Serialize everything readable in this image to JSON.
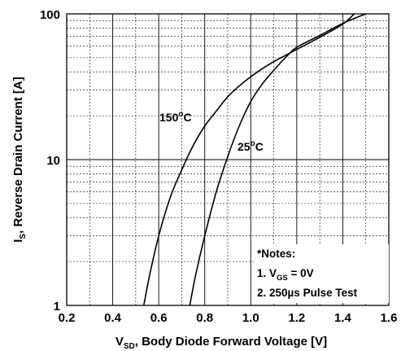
{
  "chart_data": {
    "type": "line",
    "xscale": "linear",
    "yscale": "log",
    "xlim": [
      0.2,
      1.6
    ],
    "ylim": [
      1,
      100
    ],
    "grid": true,
    "x_ticks": [
      "0.2",
      "0.4",
      "0.6",
      "0.8",
      "1.0",
      "1.2",
      "1.4",
      "1.6"
    ],
    "y_ticks": [
      "1",
      "10",
      "100"
    ],
    "xlabel": {
      "main": "V",
      "sub": "SD",
      "rest": ", Body Diode Forward Voltage [V]"
    },
    "ylabel": {
      "main": "I",
      "sub": "S",
      "rest": ", Reverse Drain Current [A]"
    },
    "series": [
      {
        "name": "150°C",
        "label": {
          "main": "150",
          "sup": "o",
          "rest": "C"
        },
        "x": [
          0.535,
          0.56,
          0.6,
          0.65,
          0.7,
          0.75,
          0.8,
          0.85,
          0.9,
          0.95,
          1.0,
          1.05,
          1.1,
          1.2,
          1.3,
          1.4,
          1.45
        ],
        "y": [
          1.0,
          1.6,
          3.0,
          5.5,
          8.5,
          12.5,
          17.0,
          21.5,
          27.0,
          32.0,
          37.0,
          42.0,
          47.0,
          57.0,
          69.0,
          85.0,
          100.0
        ]
      },
      {
        "name": "25°C",
        "label": {
          "main": "25",
          "sup": "o",
          "rest": "C"
        },
        "x": [
          0.735,
          0.76,
          0.8,
          0.85,
          0.9,
          0.95,
          1.0,
          1.05,
          1.1,
          1.15,
          1.2,
          1.3,
          1.4,
          1.5
        ],
        "y": [
          1.0,
          1.6,
          3.0,
          6.0,
          10.5,
          17.0,
          25.0,
          33.0,
          41.0,
          50.0,
          59.0,
          71.0,
          86.0,
          100.0
        ]
      }
    ],
    "notes": {
      "title": "*Notes:",
      "line1": {
        "main": "1. V",
        "sub": "GS",
        "rest": " = 0V"
      },
      "line2": "2. 250µs Pulse Test"
    }
  }
}
